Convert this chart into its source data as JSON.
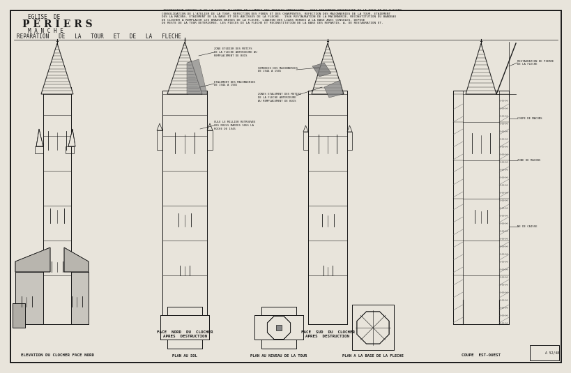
{
  "title_line1": "EGLISE  DE",
  "title_line2": "P E R I E R S",
  "title_line3": "M A N C H E",
  "title_line4": "REPARATION   DE   LA   TOUR   ET   DE   LA   FLECHE",
  "bg_color": "#e8e4db",
  "line_color": "#1a1a1a",
  "caption1": "ELEVATION DU CLOCHER FACE NORD",
  "caption2": "PLAN AU SOL",
  "caption3": "PLAN AU NIVEAU DE LA TOUR",
  "caption4": "PLAN A LA BASE DE LA FLECHE",
  "caption5": "COUPE  EST-OUEST",
  "caption6": "FACE  NORD  DU  CLOCHER\nAPRES  DESTRUCTION",
  "caption7": "FACE  SUD  DU  CLOCHER\nAPRES  DESTRUCTION",
  "header_bold": "1944",
  "header_text": " DESTRUCTION PARTIELLE DE LA FLECHE AU COURS DE L'ANNEE DES TRAVAUX AMERICAINS.  1945 ETAIEMENT PROVISOIRE DE LA TOUR ET DU CLOCHER.\nCONSOLIDATION DE L'ATELIER DE LA TOUR. REFECTION DES FONDS ET DES CHARPENTES. REFECTION DES MACONNERIES DE LA TOUR. ETAIEMENT\nDES LA MACONS. ETAIEMENT DE LA BASE ET DES ABCISSES DE LA FLECHE.  1946 RESTAURATION DE LA MACONNERIE. RECONSTITUTION DU BANDEAU\nDE CLOCHER A REMPLACER LES BRAOUS BRISES DE LA FLECHE. LIAISON DES LIASS HERDES A LA BASE AVEC CONSOLES. DEPOSE\nDU RESTE DE LA TOUR DETERIOREE. LES PIECES DE LA FLECHE ET RECONSTITUTION DE LA BASE DES REPARTIS. A. DE RESTAURATION ET."
}
